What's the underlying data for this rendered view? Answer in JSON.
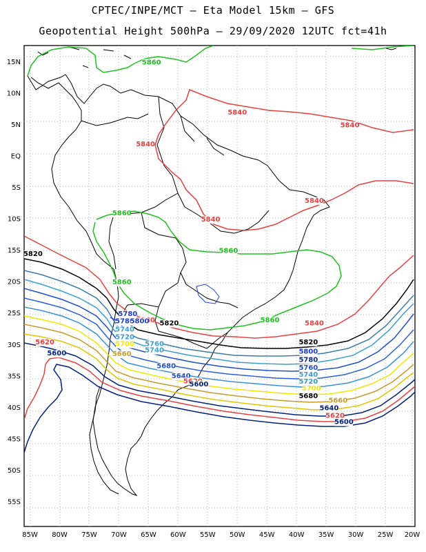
{
  "header": {
    "line1": "CPTEC/INPE/MCT –  Eta Model 15km – GFS",
    "line2": "Geopotential Height 500hPa – 29/09/2020 12UTC fct=41h"
  },
  "axes": {
    "lat_labels": [
      "15N",
      "10N",
      "5N",
      "EQ",
      "5S",
      "10S",
      "15S",
      "20S",
      "25S",
      "30S",
      "35S",
      "40S",
      "45S",
      "50S",
      "55S"
    ],
    "lon_labels": [
      "85W",
      "80W",
      "75W",
      "70W",
      "65W",
      "60W",
      "55W",
      "50W",
      "45W",
      "40W",
      "35W",
      "30W",
      "25W",
      "20W"
    ],
    "lat_range": [
      17.5,
      -59
    ],
    "lon_range": [
      -86,
      -20
    ]
  },
  "colors": {
    "c5560": "#002080",
    "c5580": "#1a3cd8",
    "c5600": "#2a60e0",
    "c5620": "#3890e0",
    "c5640": "#2aa0c0",
    "c5660": "#3c7aa8",
    "c5680": "#e3c400",
    "c5700": "#f0e800",
    "c5720": "#c89a2a",
    "c5740": "#3aa0d0",
    "c5760": "#1e4ed0",
    "c5780": "#0a2a90",
    "c5820": "#000000",
    "c5840": "#e84040",
    "c5860": "#20c020",
    "c5880": "#2040e0"
  },
  "contour_labels": [
    {
      "text": "5860",
      "lon": -64.5,
      "lat": 14.5,
      "color": "#20c020"
    },
    {
      "text": "5840",
      "lon": -50,
      "lat": 6.5,
      "color": "#e84040"
    },
    {
      "text": "5840",
      "lon": -31,
      "lat": 4.5,
      "color": "#e84040"
    },
    {
      "text": "5840",
      "lon": -65.5,
      "lat": 1.5,
      "color": "#e84040"
    },
    {
      "text": "5840",
      "lon": -37,
      "lat": -7.5,
      "color": "#e84040"
    },
    {
      "text": "5840",
      "lon": -54.5,
      "lat": -10.5,
      "color": "#e84040"
    },
    {
      "text": "5860",
      "lon": -69.5,
      "lat": -9.5,
      "color": "#20c020"
    },
    {
      "text": "5860",
      "lon": -51.5,
      "lat": -15.5,
      "color": "#20c020"
    },
    {
      "text": "5860",
      "lon": -69.5,
      "lat": -20.5,
      "color": "#20c020"
    },
    {
      "text": "5820",
      "lon": -84.5,
      "lat": -16,
      "color": "#000000"
    },
    {
      "text": "5840",
      "lon": -65.5,
      "lat": -26.5,
      "color": "#e84040"
    },
    {
      "text": "5820",
      "lon": -61.5,
      "lat": -27,
      "color": "#000000"
    },
    {
      "text": "5860",
      "lon": -44.5,
      "lat": -26.5,
      "color": "#20c020"
    },
    {
      "text": "5840",
      "lon": -37,
      "lat": -27,
      "color": "#e84040"
    },
    {
      "text": "5820",
      "lon": -38,
      "lat": -30,
      "color": "#000000"
    },
    {
      "text": "5800",
      "lon": -38,
      "lat": -31.5,
      "color": "#1a3cd8"
    },
    {
      "text": "5780",
      "lon": -38,
      "lat": -32.8,
      "color": "#0a2a90"
    },
    {
      "text": "5760",
      "lon": -38,
      "lat": -34.1,
      "color": "#1e4ed0"
    },
    {
      "text": "5740",
      "lon": -38,
      "lat": -35.2,
      "color": "#3aa0d0"
    },
    {
      "text": "5720",
      "lon": -38,
      "lat": -36.3,
      "color": "#2aa0c0"
    },
    {
      "text": "5700",
      "lon": -37.5,
      "lat": -37.4,
      "color": "#f0e800"
    },
    {
      "text": "5680",
      "lon": -38,
      "lat": -38.6,
      "color": "#000000"
    },
    {
      "text": "5660",
      "lon": -33,
      "lat": -39.3,
      "color": "#c89a2a"
    },
    {
      "text": "5640",
      "lon": -34.5,
      "lat": -40.5,
      "color": "#002080"
    },
    {
      "text": "5620",
      "lon": -33.5,
      "lat": -41.7,
      "color": "#e84040"
    },
    {
      "text": "5600",
      "lon": -32,
      "lat": -42.7,
      "color": "#002080"
    },
    {
      "text": "5780",
      "lon": -68.5,
      "lat": -25.5,
      "color": "#1a3cd8"
    },
    {
      "text": "5780",
      "lon": -69,
      "lat": -26.7,
      "color": "#1a3cd8"
    },
    {
      "text": "5800",
      "lon": -66.5,
      "lat": -26.7,
      "color": "#1a3cd8"
    },
    {
      "text": "5740",
      "lon": -69,
      "lat": -28,
      "color": "#3aa0d0"
    },
    {
      "text": "5720",
      "lon": -69,
      "lat": -29.2,
      "color": "#3aa0d0"
    },
    {
      "text": "5700",
      "lon": -69,
      "lat": -30.3,
      "color": "#f0e800"
    },
    {
      "text": "5760",
      "lon": -64,
      "lat": -30.3,
      "color": "#3aa0d0"
    },
    {
      "text": "5740",
      "lon": -64,
      "lat": -31.3,
      "color": "#3aa0d0"
    },
    {
      "text": "5660",
      "lon": -69.5,
      "lat": -31.9,
      "color": "#c89a2a"
    },
    {
      "text": "5620",
      "lon": -82.5,
      "lat": -30,
      "color": "#e84040"
    },
    {
      "text": "5600",
      "lon": -80.5,
      "lat": -31.8,
      "color": "#002080"
    },
    {
      "text": "5680",
      "lon": -62,
      "lat": -33.8,
      "color": "#1e4ed0"
    },
    {
      "text": "5640",
      "lon": -59.5,
      "lat": -35.4,
      "color": "#1e4ed0"
    },
    {
      "text": "5620",
      "lon": -57.5,
      "lat": -36.2,
      "color": "#e84040"
    },
    {
      "text": "5600",
      "lon": -56.5,
      "lat": -36.7,
      "color": "#002080"
    }
  ]
}
